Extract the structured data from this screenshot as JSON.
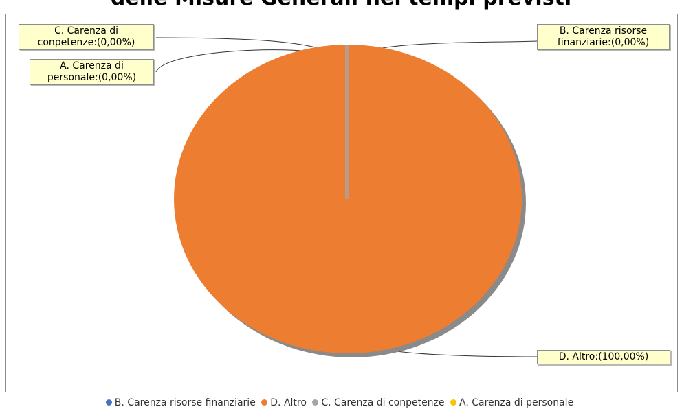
{
  "chart_data": {
    "type": "pie",
    "title": "delle Misure Generali nei tempi previsti",
    "slices": [
      {
        "label": "B. Carenza risorse finanziarie",
        "value": 0.0,
        "callout": "B. Carenza risorse finanziarie:(0,00%)",
        "color": "#4472c4"
      },
      {
        "label": "D. Altro",
        "value": 100.0,
        "callout": "D. Altro:(100,00%)",
        "color": "#ed7d31"
      },
      {
        "label": "C. Carenza di conpetenze",
        "value": 0.0,
        "callout": "C. Carenza di conpetenze:(0,00%)",
        "color": "#a5a5a5"
      },
      {
        "label": "A. Carenza di personale",
        "value": 0.0,
        "callout": "A. Carenza di personale:(0,00%)",
        "color": "#ffc000"
      }
    ],
    "legend": {
      "position": "bottom",
      "entries": [
        {
          "label": "B. Carenza risorse finanziarie",
          "color": "#4472c4"
        },
        {
          "label": "D. Altro",
          "color": "#ed7d31"
        },
        {
          "label": "C. Carenza di conpetenze",
          "color": "#a5a5a5"
        },
        {
          "label": "A. Carenza di personale",
          "color": "#ffc000"
        }
      ]
    }
  },
  "callouts": {
    "c": [
      "C. Carenza di",
      "conpetenze:(0,00%)"
    ],
    "a": [
      "A. Carenza di",
      "personale:(0,00%)"
    ],
    "b": [
      "B. Carenza risorse",
      "finanziarie:(0,00%)"
    ],
    "d": [
      "D. Altro:(100,00%)"
    ]
  }
}
